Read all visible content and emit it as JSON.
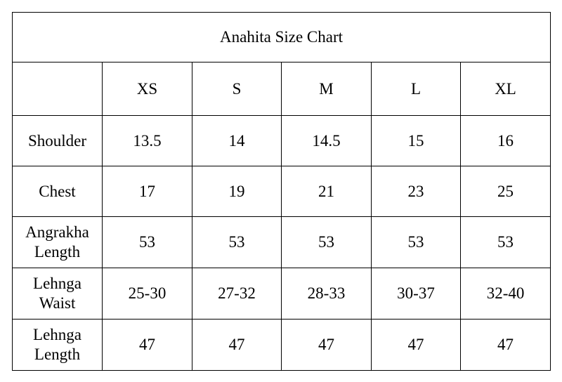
{
  "table": {
    "title": "Anahita Size Chart",
    "sizes": [
      "XS",
      "S",
      "M",
      "L",
      "XL"
    ],
    "rows": [
      {
        "label": [
          "Shoulder"
        ],
        "values": [
          "13.5",
          "14",
          "14.5",
          "15",
          "16"
        ]
      },
      {
        "label": [
          "Chest"
        ],
        "values": [
          "17",
          "19",
          "21",
          "23",
          "25"
        ]
      },
      {
        "label": [
          "Angrakha",
          "Length"
        ],
        "values": [
          "53",
          "53",
          "53",
          "53",
          "53"
        ]
      },
      {
        "label": [
          "Lehnga",
          "Waist"
        ],
        "values": [
          "25-30",
          "27-32",
          "28-33",
          "30-37",
          "32-40"
        ]
      },
      {
        "label": [
          "Lehnga",
          "Length"
        ],
        "values": [
          "47",
          "47",
          "47",
          "47",
          "47"
        ]
      }
    ]
  }
}
